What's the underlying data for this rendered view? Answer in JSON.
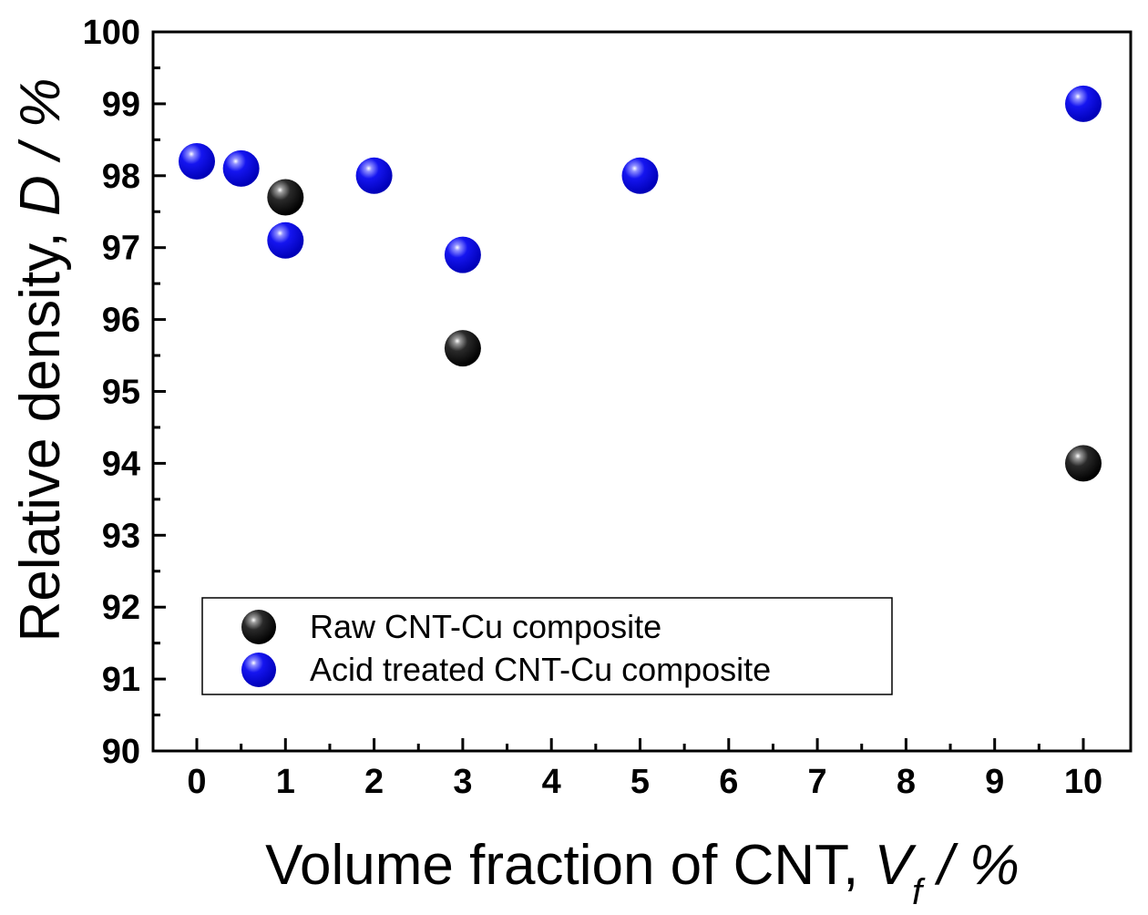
{
  "chart_data": {
    "type": "scatter",
    "xlabel_main": "Volume fraction of CNT, ",
    "xlabel_var": "V",
    "xlabel_sub": "f",
    "xlabel_unit": " / %",
    "ylabel_main": "Relative density, ",
    "ylabel_var": "D",
    "ylabel_unit": " / %",
    "ylim": [
      90,
      100
    ],
    "x_ticks": [
      {
        "label": "0",
        "pos": 0
      },
      {
        "label": "1",
        "pos": 1
      },
      {
        "label": "2",
        "pos": 2
      },
      {
        "label": "3",
        "pos": 3
      },
      {
        "label": "4",
        "pos": 4
      },
      {
        "label": "5",
        "pos": 5
      },
      {
        "label": "6",
        "pos": 6
      },
      {
        "label": "7",
        "pos": 7
      },
      {
        "label": "8",
        "pos": 8
      },
      {
        "label": "9",
        "pos": 9
      },
      {
        "label": "10",
        "pos": 10
      }
    ],
    "y_ticks": [
      "90",
      "91",
      "92",
      "93",
      "94",
      "95",
      "96",
      "97",
      "98",
      "99",
      "100"
    ],
    "legend_position": "lower-left",
    "series": [
      {
        "name": "Raw CNT-Cu composite",
        "color": "#000000",
        "highlight": "#e0e0e0",
        "points": [
          {
            "x": 1,
            "y": 97.7
          },
          {
            "x": 3,
            "y": 95.6
          },
          {
            "x": 10,
            "y": 94.0
          }
        ]
      },
      {
        "name": "Acid treated CNT-Cu composite",
        "color": "#1010ee",
        "highlight": "#e6e6ff",
        "points": [
          {
            "x": 0,
            "y": 98.2
          },
          {
            "x": 0.5,
            "y": 98.1
          },
          {
            "x": 1,
            "y": 97.1
          },
          {
            "x": 2,
            "y": 98.0
          },
          {
            "x": 3,
            "y": 96.9
          },
          {
            "x": 5,
            "y": 98.0
          },
          {
            "x": 10,
            "y": 99.0
          }
        ]
      }
    ]
  }
}
